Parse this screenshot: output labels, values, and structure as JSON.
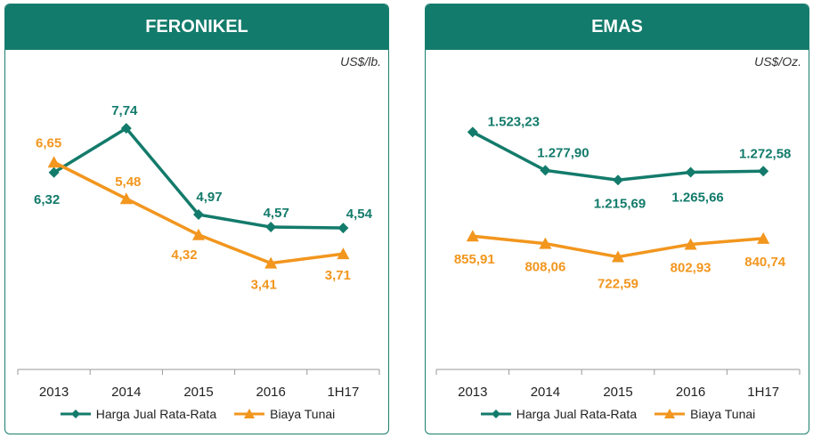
{
  "colors": {
    "harga": "#137b6b",
    "biaya": "#f2961e",
    "header": "#137b6b"
  },
  "chart_data": [
    {
      "type": "line",
      "title": "FERONIKEL",
      "unit": "US$/lb.",
      "categories": [
        "2013",
        "2014",
        "2015",
        "2016",
        "1H17"
      ],
      "ylim": [
        0,
        10
      ],
      "series": [
        {
          "name": "Harga Jual Rata-Rata",
          "values": [
            6.32,
            7.74,
            4.97,
            4.57,
            4.54
          ],
          "labels": [
            "6,32",
            "7,74",
            "4,97",
            "4,57",
            "4,54"
          ]
        },
        {
          "name": "Biaya Tunai",
          "values": [
            6.65,
            5.48,
            4.32,
            3.41,
            3.71
          ],
          "labels": [
            "6,65",
            "5,48",
            "4,32",
            "3,41",
            "3,71"
          ]
        }
      ]
    },
    {
      "type": "line",
      "title": "EMAS",
      "unit": "US$/Oz.",
      "categories": [
        "2013",
        "2014",
        "2015",
        "2016",
        "1H17"
      ],
      "ylim": [
        0,
        2000
      ],
      "series": [
        {
          "name": "Harga Jual Rata-Rata",
          "values": [
            1523.23,
            1277.9,
            1215.69,
            1265.66,
            1272.58
          ],
          "labels": [
            "1.523,23",
            "1.277,90",
            "1.215,69",
            "1.265,66",
            "1.272,58"
          ]
        },
        {
          "name": "Biaya Tunai",
          "values": [
            855.91,
            808.06,
            722.59,
            802.93,
            840.74
          ],
          "labels": [
            "855,91",
            "808,06",
            "722,59",
            "802,93",
            "840,74"
          ]
        }
      ]
    }
  ]
}
